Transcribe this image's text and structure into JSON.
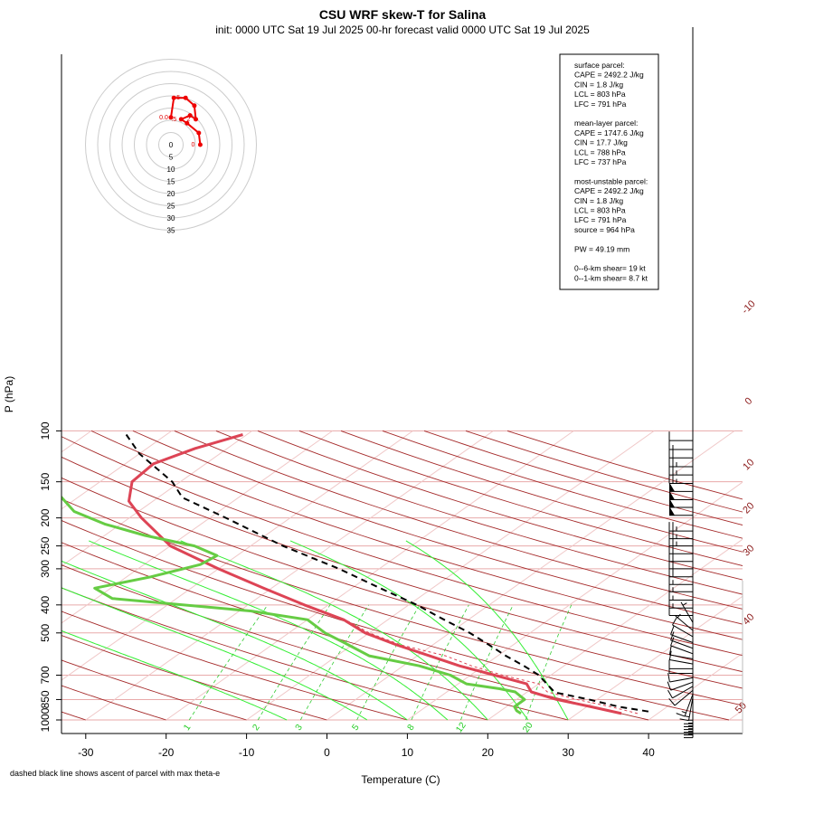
{
  "title": "CSU WRF skew-T for Salina",
  "subtitle": "init: 0000 UTC Sat 19 Jul 2025     00-hr forecast valid 0000 UTC Sat 19 Jul 2025",
  "footnote": "dashed black line shows ascent of parcel with max theta-e",
  "info_box": [
    "surface parcel:",
    "CAPE = 2492.2 J/kg",
    "CIN = 1.8 J/kg",
    "LCL = 803 hPa",
    "LFC = 791 hPa",
    "",
    "mean-layer parcel:",
    "CAPE = 1747.6 J/kg",
    "CIN = 17.7 J/kg",
    "LCL = 788 hPa",
    "LFC = 737 hPa",
    "",
    "most-unstable parcel:",
    "CAPE = 2492.2 J/kg",
    "CIN = 1.8 J/kg",
    "LCL = 803 hPa",
    "LFC = 791 hPa",
    "source = 964 hPa",
    "",
    "PW =  49.19 mm",
    "",
    "0--6-km shear= 19 kt",
    "0--1-km shear= 8.7 kt"
  ],
  "colors": {
    "temperature": "#dd4455",
    "dewpoint": "#66cc44",
    "parcel": "#000000",
    "isobar": "#e8aaaa",
    "isotherm": "#f0c8c8",
    "dry_adiabat": "#a52a2a",
    "moist_adiabat": "#33ee33",
    "mixing_ratio": "#33cc33",
    "hodograph": "#ee0000"
  },
  "chart_data": {
    "type": "skew-t",
    "xlabel": "Temperature (C)",
    "ylabel": "P (hPa)",
    "x_ticks": [
      -30,
      -20,
      -10,
      0,
      10,
      20,
      30,
      40
    ],
    "y_ticks": [
      100,
      150,
      200,
      250,
      300,
      400,
      500,
      700,
      850,
      1000
    ],
    "y_scale": "log",
    "isotherm_labels": [
      -10,
      0,
      10,
      20,
      30,
      40,
      50
    ],
    "mixing_ratio_labels": [
      1,
      2,
      3,
      5,
      8,
      12,
      20
    ],
    "temperature_profile": {
      "pressure": [
        950,
        900,
        850,
        800,
        750,
        700,
        650,
        600,
        550,
        500,
        450,
        400,
        350,
        300,
        250,
        200,
        175,
        150,
        130,
        115,
        103
      ],
      "temp": [
        35.5,
        30.5,
        25.0,
        20.5,
        18.5,
        13.0,
        7.0,
        1.5,
        -4.5,
        -10.5,
        -15.5,
        -23.0,
        -31.0,
        -40.0,
        -50.0,
        -58.5,
        -63.0,
        -66.0,
        -66.5,
        -64.0,
        -60.5
      ]
    },
    "virtual_temperature_profile": {
      "pressure": [
        950,
        900,
        850,
        800,
        750,
        700,
        650,
        600,
        550,
        500,
        450
      ],
      "temp": [
        37.5,
        33.0,
        27.5,
        22.5,
        20.0,
        14.0,
        8.5,
        3.5,
        -4.0,
        -10.0,
        -15.3
      ]
    },
    "dewpoint_profile": {
      "pressure": [
        950,
        930,
        900,
        850,
        800,
        780,
        750,
        700,
        650,
        600,
        550,
        500,
        450,
        420,
        380,
        350,
        320,
        290,
        270,
        250,
        230,
        210,
        190,
        170,
        160,
        105
      ],
      "dewpt": [
        23.0,
        22.0,
        21.0,
        21.0,
        18.5,
        16.0,
        11.0,
        7.5,
        2.0,
        -6.0,
        -10.5,
        -15.5,
        -20.0,
        -28.5,
        -48.0,
        -52.0,
        -47.0,
        -43.0,
        -42.5,
        -47.0,
        -55.0,
        -62.0,
        -68.0,
        -72.0,
        -75.0,
        -90.0
      ]
    },
    "parcel_profile": {
      "pressure": [
        935,
        900,
        850,
        803,
        750,
        700,
        650,
        600,
        550,
        500,
        450,
        400,
        350,
        300,
        250,
        200,
        170,
        150,
        120,
        103
      ],
      "temp": [
        38.5,
        34.0,
        29.0,
        23.5,
        21.0,
        18.5,
        15.0,
        11.0,
        7.0,
        2.5,
        -3.0,
        -9.0,
        -16.5,
        -25.0,
        -36.0,
        -48.0,
        -57.0,
        -61.0,
        -70.0,
        -75.0
      ]
    },
    "wind_barbs": [
      {
        "pressure": 955,
        "speed_kt": 15,
        "direction_deg": 180
      },
      {
        "pressure": 935,
        "speed_kt": 15,
        "direction_deg": 180
      },
      {
        "pressure": 915,
        "speed_kt": 15,
        "direction_deg": 180
      },
      {
        "pressure": 895,
        "speed_kt": 15,
        "direction_deg": 180
      },
      {
        "pressure": 875,
        "speed_kt": 15,
        "direction_deg": 180
      },
      {
        "pressure": 855,
        "speed_kt": 15,
        "direction_deg": 180
      },
      {
        "pressure": 835,
        "speed_kt": 15,
        "direction_deg": 190
      },
      {
        "pressure": 815,
        "speed_kt": 15,
        "direction_deg": 200
      },
      {
        "pressure": 790,
        "speed_kt": 10,
        "direction_deg": 230
      },
      {
        "pressure": 765,
        "speed_kt": 10,
        "direction_deg": 240
      },
      {
        "pressure": 740,
        "speed_kt": 10,
        "direction_deg": 250
      },
      {
        "pressure": 715,
        "speed_kt": 10,
        "direction_deg": 260
      },
      {
        "pressure": 690,
        "speed_kt": 10,
        "direction_deg": 270
      },
      {
        "pressure": 665,
        "speed_kt": 10,
        "direction_deg": 270
      },
      {
        "pressure": 640,
        "speed_kt": 10,
        "direction_deg": 280
      },
      {
        "pressure": 615,
        "speed_kt": 10,
        "direction_deg": 280
      },
      {
        "pressure": 590,
        "speed_kt": 10,
        "direction_deg": 290
      },
      {
        "pressure": 565,
        "speed_kt": 10,
        "direction_deg": 290
      },
      {
        "pressure": 540,
        "speed_kt": 10,
        "direction_deg": 290
      },
      {
        "pressure": 515,
        "speed_kt": 10,
        "direction_deg": 300
      },
      {
        "pressure": 490,
        "speed_kt": 5,
        "direction_deg": 310
      },
      {
        "pressure": 460,
        "speed_kt": 5,
        "direction_deg": 330
      },
      {
        "pressure": 435,
        "speed_kt": 10,
        "direction_deg": 270
      },
      {
        "pressure": 410,
        "speed_kt": 15,
        "direction_deg": 270
      },
      {
        "pressure": 385,
        "speed_kt": 15,
        "direction_deg": 270
      },
      {
        "pressure": 360,
        "speed_kt": 15,
        "direction_deg": 270
      },
      {
        "pressure": 340,
        "speed_kt": 15,
        "direction_deg": 270
      },
      {
        "pressure": 320,
        "speed_kt": 20,
        "direction_deg": 270
      },
      {
        "pressure": 300,
        "speed_kt": 20,
        "direction_deg": 270
      },
      {
        "pressure": 283,
        "speed_kt": 20,
        "direction_deg": 270
      },
      {
        "pressure": 266,
        "speed_kt": 20,
        "direction_deg": 270
      },
      {
        "pressure": 250,
        "speed_kt": 25,
        "direction_deg": 270
      },
      {
        "pressure": 236,
        "speed_kt": 25,
        "direction_deg": 270
      },
      {
        "pressure": 222,
        "speed_kt": 25,
        "direction_deg": 270
      },
      {
        "pressure": 196,
        "speed_kt": 50,
        "direction_deg": 270
      },
      {
        "pressure": 184,
        "speed_kt": 50,
        "direction_deg": 270
      },
      {
        "pressure": 173,
        "speed_kt": 50,
        "direction_deg": 270
      },
      {
        "pressure": 162,
        "speed_kt": 50,
        "direction_deg": 270
      },
      {
        "pressure": 152,
        "speed_kt": 25,
        "direction_deg": 270
      },
      {
        "pressure": 142,
        "speed_kt": 25,
        "direction_deg": 270
      },
      {
        "pressure": 133,
        "speed_kt": 25,
        "direction_deg": 270
      },
      {
        "pressure": 124,
        "speed_kt": 20,
        "direction_deg": 270
      },
      {
        "pressure": 116,
        "speed_kt": 15,
        "direction_deg": 270
      },
      {
        "pressure": 108,
        "speed_kt": 10,
        "direction_deg": 270
      }
    ],
    "hodograph": {
      "ring_labels": [
        "0",
        "5",
        "10",
        "15",
        "20",
        "25",
        "30",
        "35"
      ],
      "ring_step_kt": 5,
      "points": [
        {
          "u": 10,
          "v": 0,
          "label": "0"
        },
        {
          "u": 9.5,
          "v": 3.0,
          "label": ""
        },
        {
          "u": 5.5,
          "v": 5.5,
          "label": ""
        },
        {
          "u": 3.5,
          "v": 6.5,
          "label": ".5"
        },
        {
          "u": 6.5,
          "v": 7.5,
          "label": ""
        },
        {
          "u": 8.5,
          "v": 6.5,
          "label": "2"
        },
        {
          "u": 8.0,
          "v": 10.0,
          "label": ""
        },
        {
          "u": 5.0,
          "v": 12.0,
          "label": "5"
        },
        {
          "u": 1.0,
          "v": 12.0,
          "label": ""
        },
        {
          "u": 0.0,
          "v": 7.0,
          "label": "0.0"
        }
      ],
      "label_texts": [
        "0.5",
        "0.0",
        "2",
        "5",
        "8",
        "5"
      ]
    }
  }
}
